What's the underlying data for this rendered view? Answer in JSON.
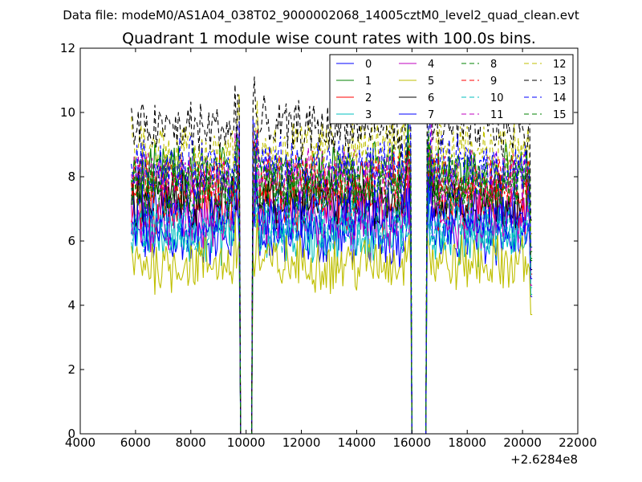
{
  "chart_data": {
    "type": "line",
    "suptitle": "Data file: modeM0/AS1A04_038T02_9000002068_14005cztM0_level2_quad_clean.evt",
    "title": "Quadrant 1 module wise count rates with 100.0s bins.",
    "xlabel": "",
    "ylabel": "",
    "x_offset_label": "+2.6284e8",
    "xlim": [
      4000,
      22000
    ],
    "ylim": [
      0,
      12
    ],
    "xticks": [
      4000,
      6000,
      8000,
      10000,
      12000,
      14000,
      16000,
      18000,
      20000,
      22000
    ],
    "xtick_labels": [
      "4000",
      "6000",
      "8000",
      "10000",
      "12000",
      "14000",
      "16000",
      "18000",
      "20000",
      "22000"
    ],
    "yticks": [
      0,
      2,
      4,
      6,
      8,
      10,
      12
    ],
    "ytick_labels": [
      "0",
      "2",
      "4",
      "6",
      "8",
      "10",
      "12"
    ],
    "grid": false,
    "legend_position": "top-right",
    "legend_columns": 4,
    "x_range": [
      5850,
      20350
    ],
    "bin_width": 100,
    "gaps": [
      [
        9750,
        10250
      ],
      [
        15950,
        16550
      ]
    ],
    "gap_floor": 0,
    "series": [
      {
        "name": "0",
        "color": "#0000ff",
        "dash": "solid",
        "mean": 6.1
      },
      {
        "name": "1",
        "color": "#008000",
        "dash": "solid",
        "mean": 8.1
      },
      {
        "name": "2",
        "color": "#ff0000",
        "dash": "solid",
        "mean": 7.1
      },
      {
        "name": "3",
        "color": "#00bfbf",
        "dash": "solid",
        "mean": 6.2
      },
      {
        "name": "4",
        "color": "#bf00bf",
        "dash": "solid",
        "mean": 6.6
      },
      {
        "name": "5",
        "color": "#bfbf00",
        "dash": "solid",
        "mean": 5.3
      },
      {
        "name": "6",
        "color": "#000000",
        "dash": "solid",
        "mean": 7.3
      },
      {
        "name": "7",
        "color": "#0000ff",
        "dash": "solid",
        "mean": 6.9
      },
      {
        "name": "8",
        "color": "#008000",
        "dash": "dashed",
        "mean": 7.8
      },
      {
        "name": "9",
        "color": "#ff0000",
        "dash": "dashed",
        "mean": 7.9
      },
      {
        "name": "10",
        "color": "#00bfbf",
        "dash": "dashed",
        "mean": 6.5
      },
      {
        "name": "11",
        "color": "#bf00bf",
        "dash": "dashed",
        "mean": 8.0
      },
      {
        "name": "12",
        "color": "#bfbf00",
        "dash": "dashed",
        "mean": 8.9
      },
      {
        "name": "13",
        "color": "#000000",
        "dash": "dashed",
        "mean": 9.5
      },
      {
        "name": "14",
        "color": "#0000ff",
        "dash": "dashed",
        "mean": 8.3
      },
      {
        "name": "15",
        "color": "#008000",
        "dash": "dashed",
        "mean": 7.7
      }
    ]
  }
}
